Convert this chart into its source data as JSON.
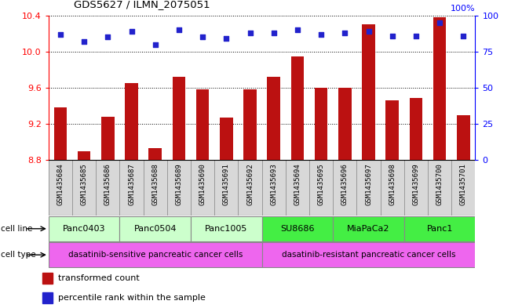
{
  "title": "GDS5627 / ILMN_2075051",
  "samples": [
    "GSM1435684",
    "GSM1435685",
    "GSM1435686",
    "GSM1435687",
    "GSM1435688",
    "GSM1435689",
    "GSM1435690",
    "GSM1435691",
    "GSM1435692",
    "GSM1435693",
    "GSM1435694",
    "GSM1435695",
    "GSM1435696",
    "GSM1435697",
    "GSM1435698",
    "GSM1435699",
    "GSM1435700",
    "GSM1435701"
  ],
  "bar_values": [
    9.38,
    8.9,
    9.28,
    9.65,
    8.93,
    9.72,
    9.58,
    9.27,
    9.58,
    9.72,
    9.95,
    9.6,
    9.6,
    10.3,
    9.46,
    9.49,
    10.38,
    9.3
  ],
  "percentile_values": [
    87,
    82,
    85,
    89,
    80,
    90,
    85,
    84,
    88,
    88,
    90,
    87,
    88,
    89,
    86,
    86,
    95,
    86
  ],
  "ylim_left": [
    8.8,
    10.4
  ],
  "ylim_right": [
    0,
    100
  ],
  "yticks_left": [
    8.8,
    9.2,
    9.6,
    10.0,
    10.4
  ],
  "yticks_right": [
    0,
    25,
    50,
    75,
    100
  ],
  "bar_color": "#bb1111",
  "dot_color": "#2222cc",
  "cell_lines": [
    {
      "label": "Panc0403",
      "start": 0,
      "end": 2,
      "color": "#ccffcc"
    },
    {
      "label": "Panc0504",
      "start": 3,
      "end": 5,
      "color": "#ccffcc"
    },
    {
      "label": "Panc1005",
      "start": 6,
      "end": 8,
      "color": "#ccffcc"
    },
    {
      "label": "SU8686",
      "start": 9,
      "end": 11,
      "color": "#44ee44"
    },
    {
      "label": "MiaPaCa2",
      "start": 12,
      "end": 14,
      "color": "#44ee44"
    },
    {
      "label": "Panc1",
      "start": 15,
      "end": 17,
      "color": "#44ee44"
    }
  ],
  "cell_types": [
    {
      "label": "dasatinib-sensitive pancreatic cancer cells",
      "start": 0,
      "end": 8,
      "color": "#ee66ee"
    },
    {
      "label": "dasatinib-resistant pancreatic cancer cells",
      "start": 9,
      "end": 17,
      "color": "#ee66ee"
    }
  ],
  "legend_bar_label": "transformed count",
  "legend_dot_label": "percentile rank within the sample",
  "cell_line_label": "cell line",
  "cell_type_label": "cell type",
  "n_samples": 18,
  "bar_baseline": 8.8
}
